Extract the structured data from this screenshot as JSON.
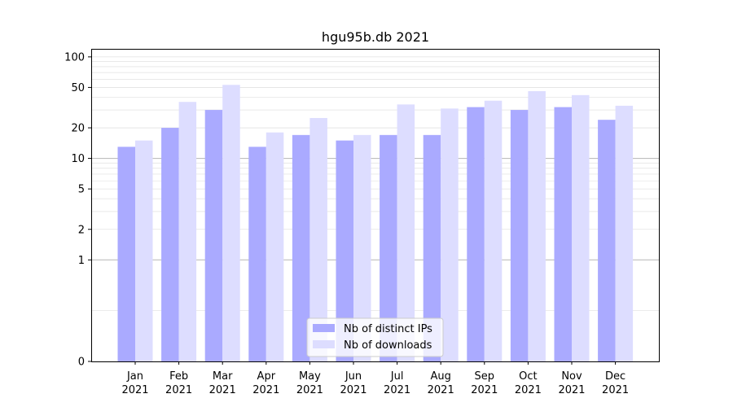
{
  "chart_data": {
    "type": "bar",
    "title": "hgu95b.db 2021",
    "xlabel": "",
    "ylabel": "",
    "yscale": "symlog",
    "ylim": [
      0,
      120
    ],
    "yticks": [
      0,
      1,
      2,
      5,
      10,
      20,
      50,
      100
    ],
    "ytick_labels": [
      "0",
      "1",
      "2",
      "5",
      "10",
      "20",
      "50",
      "100"
    ],
    "categories": [
      "Jan",
      "Feb",
      "Mar",
      "Apr",
      "May",
      "Jun",
      "Jul",
      "Aug",
      "Sep",
      "Oct",
      "Nov",
      "Dec"
    ],
    "category_year": "2021",
    "series": [
      {
        "name": "Nb of distinct IPs",
        "color": "#aaaaff",
        "values": [
          13,
          20,
          30,
          13,
          17,
          15,
          17,
          17,
          32,
          30,
          32,
          24
        ]
      },
      {
        "name": "Nb of downloads",
        "color": "#ddddff",
        "values": [
          15,
          36,
          53,
          18,
          25,
          17,
          34,
          31,
          37,
          46,
          42,
          33
        ]
      }
    ],
    "legend_position": "lower center",
    "grid": true
  }
}
